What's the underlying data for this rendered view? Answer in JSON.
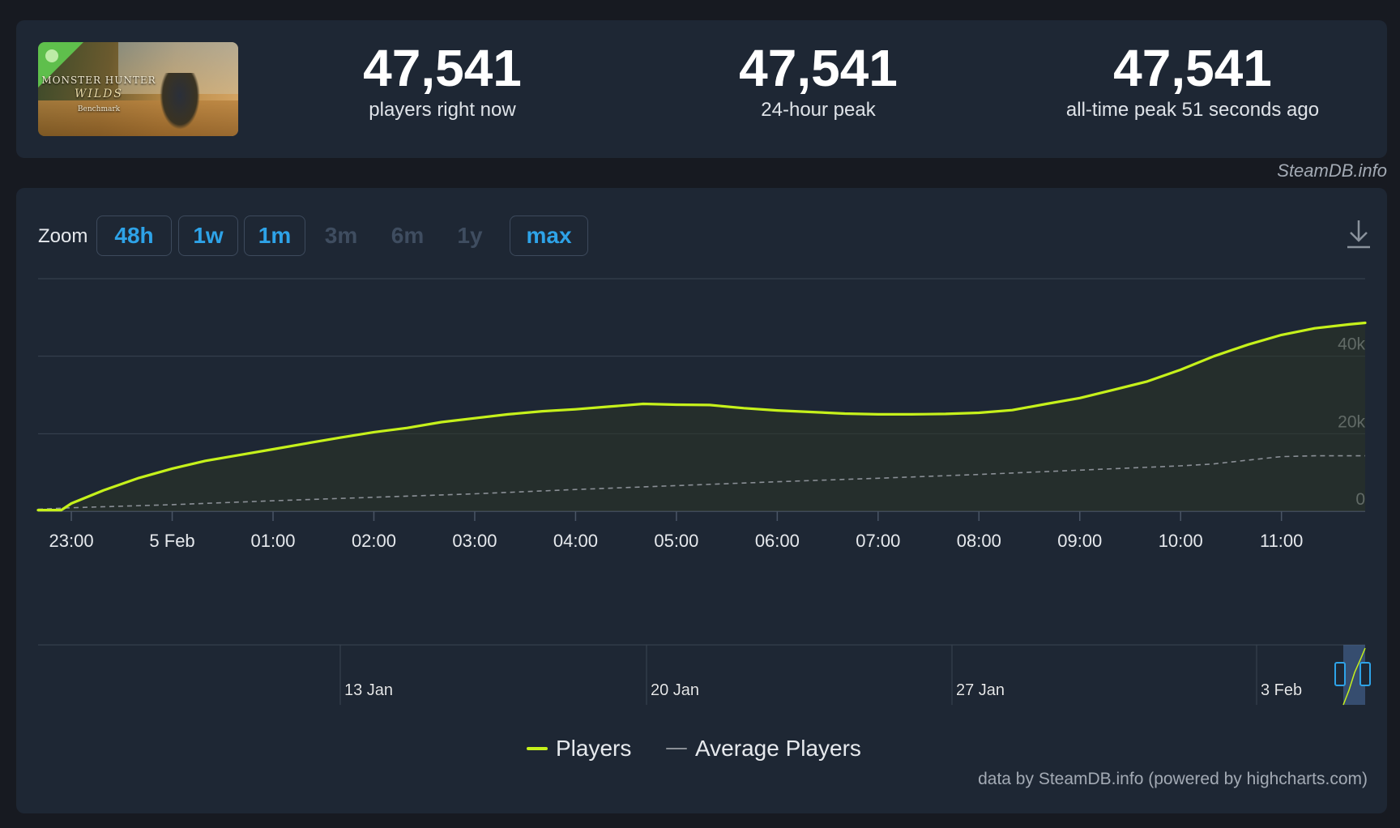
{
  "game": {
    "thumbnail_title": "MONSTER HUNTER",
    "thumbnail_subtitle": "WILDS",
    "thumbnail_tag": "Benchmark"
  },
  "stats": [
    {
      "value": "47,541",
      "label": "players right now"
    },
    {
      "value": "47,541",
      "label": "24-hour peak"
    },
    {
      "value": "47,541",
      "label": "all-time peak 51 seconds ago"
    }
  ],
  "source_credit": "SteamDB.info",
  "zoom": {
    "label": "Zoom",
    "buttons": [
      {
        "label": "48h",
        "enabled": true
      },
      {
        "label": "1w",
        "enabled": true
      },
      {
        "label": "1m",
        "enabled": true
      },
      {
        "label": "3m",
        "enabled": false
      },
      {
        "label": "6m",
        "enabled": false
      },
      {
        "label": "1y",
        "enabled": false
      },
      {
        "label": "max",
        "enabled": true
      }
    ]
  },
  "colors": {
    "players": "#c6f11b",
    "average": "#8a8f96",
    "grid": "#3a4452",
    "navigator_mask": "#4a6ea0",
    "accent": "#2ea3e8"
  },
  "legend": [
    {
      "name": "Players",
      "color": "#c6f11b"
    },
    {
      "name": "Average Players",
      "color": "#8a8f96"
    }
  ],
  "credits": "data by SteamDB.info (powered by highcharts.com)",
  "chart_data": {
    "type": "line",
    "xlabel": "",
    "ylabel": "",
    "ylim": [
      0,
      60000
    ],
    "y_ticks": [
      0,
      20000,
      40000
    ],
    "y_tick_labels": [
      "0",
      "20k",
      "40k"
    ],
    "x_tick_labels": [
      "23:00",
      "5 Feb",
      "01:00",
      "02:00",
      "03:00",
      "04:00",
      "05:00",
      "06:00",
      "07:00",
      "08:00",
      "09:00",
      "10:00",
      "11:00"
    ],
    "x_range_hours": [
      -0.33,
      12.83
    ],
    "x_tick_hours": [
      0,
      1,
      2,
      3,
      4,
      5,
      6,
      7,
      8,
      9,
      10,
      11,
      12
    ],
    "grid": true,
    "legend_position": "bottom-center",
    "series": [
      {
        "name": "Players",
        "x_hours": [
          -0.33,
          -0.17,
          -0.1,
          0,
          0.33,
          0.67,
          1,
          1.33,
          1.67,
          2,
          2.33,
          2.67,
          3,
          3.33,
          3.67,
          4,
          4.33,
          4.67,
          5,
          5.33,
          5.67,
          6,
          6.33,
          6.67,
          7,
          7.33,
          7.67,
          8,
          8.33,
          8.67,
          9,
          9.33,
          9.67,
          10,
          10.33,
          10.67,
          11,
          11.33,
          11.67,
          12,
          12.33,
          12.67,
          12.83
        ],
        "values": [
          300,
          300,
          300,
          2000,
          5500,
          8600,
          11000,
          13000,
          14500,
          16000,
          17500,
          19000,
          20400,
          21500,
          23000,
          24000,
          25000,
          25800,
          26300,
          27000,
          27700,
          27500,
          27400,
          26600,
          26000,
          25600,
          25200,
          25000,
          25000,
          25100,
          25400,
          26100,
          27700,
          29200,
          31300,
          33500,
          36500,
          40000,
          43000,
          45500,
          47200,
          48200,
          48600
        ]
      },
      {
        "name": "Average Players",
        "x_hours": [
          -0.33,
          0,
          1,
          2,
          3,
          4,
          5,
          6,
          7,
          8,
          9,
          10,
          11,
          11.33,
          11.67,
          12,
          12.33,
          12.67,
          12.83
        ],
        "values": [
          500,
          900,
          1700,
          2700,
          3600,
          4500,
          5600,
          6600,
          7600,
          8500,
          9500,
          10600,
          11700,
          12200,
          13200,
          14100,
          14300,
          14300,
          14300
        ]
      }
    ],
    "navigator": {
      "x_tick_labels": [
        "13 Jan",
        "20 Jan",
        "27 Jan",
        "3 Feb"
      ]
    }
  }
}
